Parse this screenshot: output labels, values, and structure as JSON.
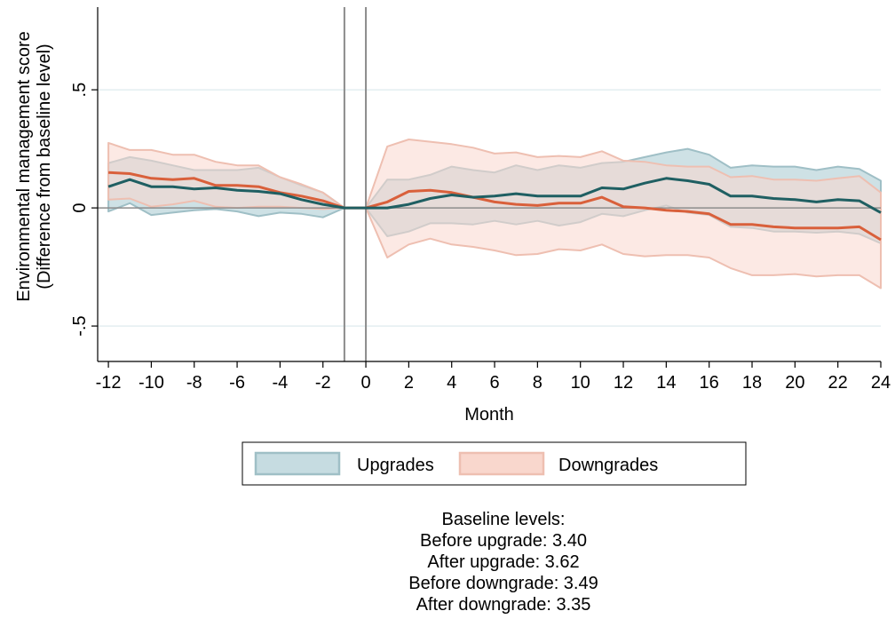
{
  "chart_data": {
    "type": "line",
    "xlabel": "Month",
    "ylabel_lines": [
      "Environmental management score",
      "(Difference from baseline level)"
    ],
    "xlim": [
      -12.5,
      24
    ],
    "ylim": [
      -0.65,
      0.85
    ],
    "x_ticks": [
      -12,
      -10,
      -8,
      -6,
      -4,
      -2,
      0,
      2,
      4,
      6,
      8,
      10,
      12,
      14,
      16,
      18,
      20,
      22,
      24
    ],
    "x_tick_labels": [
      "-12",
      "-10",
      "-8",
      "-6",
      "-4",
      "-2",
      "0",
      "2",
      "4",
      "6",
      "8",
      "10",
      "12",
      "14",
      "16",
      "18",
      "20",
      "22",
      "24"
    ],
    "y_ticks": [
      -0.5,
      0,
      0.5
    ],
    "y_tick_labels": [
      "-.5",
      "0",
      ".5"
    ],
    "grid": true,
    "reference_lines_x": [
      -1,
      0
    ],
    "reference_line_y": 0,
    "x": [
      -12,
      -11,
      -10,
      -9,
      -8,
      -7,
      -6,
      -5,
      -4,
      -3,
      -2,
      -1,
      0,
      1,
      2,
      3,
      4,
      5,
      6,
      7,
      8,
      9,
      10,
      11,
      12,
      13,
      14,
      15,
      16,
      17,
      18,
      19,
      20,
      21,
      22,
      23,
      24
    ],
    "series": [
      {
        "name": "Upgrades",
        "line_color": "#1f5f62",
        "band_fill": "#c6dce1",
        "band_stroke": "#9fbfc6",
        "values": [
          0.09,
          0.12,
          0.09,
          0.09,
          0.08,
          0.085,
          0.075,
          0.07,
          0.06,
          0.035,
          0.015,
          0,
          0,
          0,
          0.015,
          0.04,
          0.055,
          0.045,
          0.05,
          0.06,
          0.05,
          0.05,
          0.05,
          0.085,
          0.08,
          0.105,
          0.125,
          0.115,
          0.1,
          0.05,
          0.05,
          0.04,
          0.035,
          0.025,
          0.035,
          0.03,
          -0.02
        ],
        "upper": [
          0.19,
          0.215,
          0.2,
          0.18,
          0.16,
          0.16,
          0.16,
          0.17,
          0.13,
          0.095,
          0.065,
          0,
          0,
          0.12,
          0.12,
          0.14,
          0.175,
          0.16,
          0.15,
          0.18,
          0.16,
          0.18,
          0.17,
          0.19,
          0.195,
          0.215,
          0.235,
          0.25,
          0.225,
          0.17,
          0.18,
          0.175,
          0.175,
          0.16,
          0.175,
          0.165,
          0.115
        ],
        "lower": [
          -0.015,
          0.02,
          -0.03,
          -0.02,
          -0.01,
          -0.005,
          -0.015,
          -0.035,
          -0.02,
          -0.025,
          -0.04,
          0,
          0,
          -0.12,
          -0.1,
          -0.065,
          -0.065,
          -0.07,
          -0.055,
          -0.07,
          -0.055,
          -0.075,
          -0.06,
          -0.025,
          -0.035,
          -0.01,
          0.01,
          -0.02,
          -0.03,
          -0.08,
          -0.085,
          -0.1,
          -0.1,
          -0.105,
          -0.1,
          -0.11,
          -0.15
        ]
      },
      {
        "name": "Downgrades",
        "line_color": "#d9603b",
        "band_fill": "#f9d7cd",
        "band_stroke": "#eebfb1",
        "values": [
          0.15,
          0.145,
          0.125,
          0.12,
          0.125,
          0.095,
          0.095,
          0.09,
          0.065,
          0.05,
          0.03,
          0,
          0,
          0.025,
          0.07,
          0.075,
          0.065,
          0.045,
          0.025,
          0.015,
          0.01,
          0.02,
          0.02,
          0.045,
          0.005,
          0,
          -0.01,
          -0.015,
          -0.025,
          -0.07,
          -0.07,
          -0.08,
          -0.085,
          -0.085,
          -0.085,
          -0.08,
          -0.135
        ],
        "upper": [
          0.275,
          0.245,
          0.245,
          0.225,
          0.225,
          0.195,
          0.18,
          0.18,
          0.13,
          0.1,
          0.065,
          0,
          0,
          0.26,
          0.29,
          0.28,
          0.27,
          0.255,
          0.23,
          0.235,
          0.215,
          0.22,
          0.215,
          0.24,
          0.2,
          0.195,
          0.18,
          0.175,
          0.175,
          0.13,
          0.135,
          0.12,
          0.12,
          0.115,
          0.125,
          0.135,
          0.065
        ],
        "lower": [
          0.035,
          0.04,
          0.005,
          0.015,
          0.03,
          0.005,
          0.0,
          0.005,
          0.005,
          0.0,
          -0.005,
          0,
          0,
          -0.21,
          -0.155,
          -0.13,
          -0.155,
          -0.165,
          -0.18,
          -0.2,
          -0.195,
          -0.175,
          -0.18,
          -0.155,
          -0.195,
          -0.205,
          -0.2,
          -0.2,
          -0.21,
          -0.255,
          -0.285,
          -0.285,
          -0.28,
          -0.29,
          -0.285,
          -0.285,
          -0.34
        ]
      }
    ]
  },
  "legend": {
    "items": [
      {
        "label": "Upgrades",
        "fill": "#c6dce1",
        "stroke": "#9fbfc6"
      },
      {
        "label": "Downgrades",
        "fill": "#f9d7cd",
        "stroke": "#eebfb1"
      }
    ]
  },
  "note": {
    "lines": [
      "Baseline levels:",
      "Before upgrade: 3.40",
      "After upgrade: 3.62",
      "Before downgrade: 3.49",
      "After downgrade: 3.35"
    ]
  }
}
